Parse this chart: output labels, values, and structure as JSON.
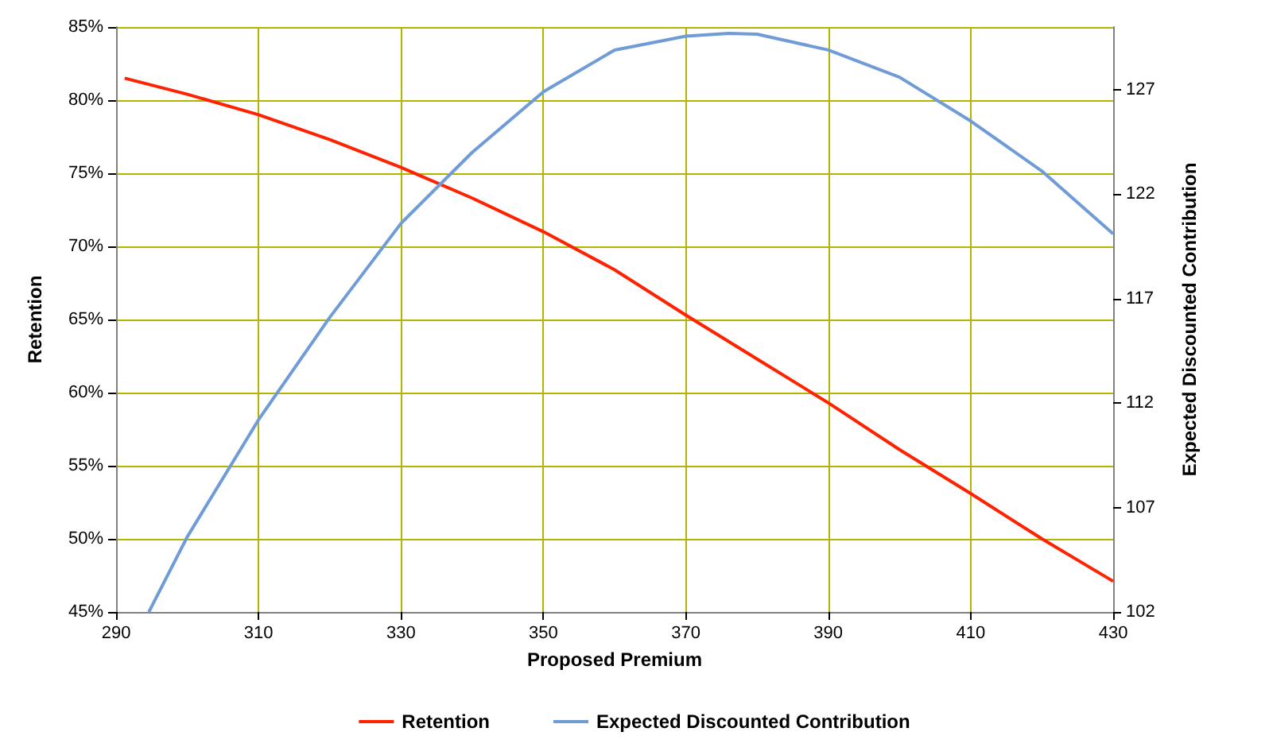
{
  "chart_data": {
    "type": "line",
    "xlabel": "Proposed Premium",
    "ylabel": "Retention",
    "y2label": "Expected Discounted Contribution",
    "xlim": [
      290,
      430
    ],
    "xticks": [
      290,
      310,
      330,
      350,
      370,
      390,
      410,
      430
    ],
    "ylim": [
      45,
      85
    ],
    "yticks": [
      {
        "value": 45,
        "label": "45%"
      },
      {
        "value": 50,
        "label": "50%"
      },
      {
        "value": 55,
        "label": "55%"
      },
      {
        "value": 60,
        "label": "60%"
      },
      {
        "value": 65,
        "label": "65%"
      },
      {
        "value": 70,
        "label": "70%"
      },
      {
        "value": 75,
        "label": "75%"
      },
      {
        "value": 80,
        "label": "80%"
      },
      {
        "value": 85,
        "label": "85%"
      }
    ],
    "y2lim": [
      102,
      130
    ],
    "y2ticks": [
      102,
      107,
      112,
      117,
      122,
      127
    ],
    "grid": true,
    "legend": "bottom",
    "marker": "none",
    "line_style": "solid",
    "series": [
      {
        "name": "Retention",
        "color": "#ff2200",
        "x": [
          291.2,
          300,
          310,
          320,
          330,
          340,
          350,
          360,
          370,
          380,
          390,
          400,
          410,
          420,
          430
        ],
        "values": [
          81.5,
          80.4,
          79.0,
          77.3,
          75.4,
          73.3,
          71.0,
          68.4,
          65.3,
          62.3,
          59.3,
          56.1,
          53.1,
          50.0,
          47.1
        ]
      },
      {
        "name": "Expected Discounted Contribution",
        "color": "#6f9bd6",
        "axis": "y2",
        "x": [
          294.6,
          300,
          310,
          320,
          330,
          340,
          350,
          360,
          370,
          376,
          380,
          390,
          400,
          410,
          420,
          430
        ],
        "values": [
          102,
          105.6,
          111.2,
          116.1,
          120.6,
          124.0,
          126.9,
          128.9,
          129.56,
          129.7,
          129.66,
          128.9,
          127.6,
          125.5,
          123.1,
          120.1
        ]
      }
    ]
  }
}
